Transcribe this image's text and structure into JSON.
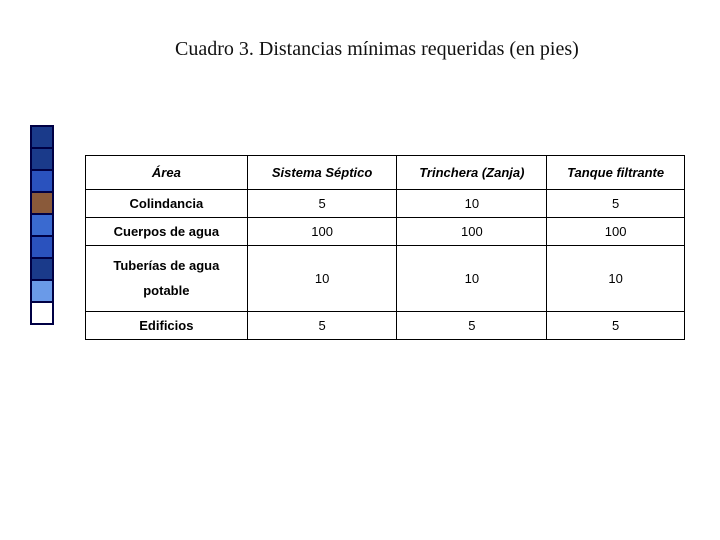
{
  "title": "Cuadro 3. Distancias mínimas requeridas (en pies)",
  "bullets": {
    "colors": [
      "#1a3a8a",
      "#1a3a8a",
      "#2a52be",
      "#8a5a3a",
      "#3a6ad0",
      "#2a52be",
      "#1a3a8a",
      "#6a9ae8",
      "#ffffff"
    ],
    "border_color": "#000044"
  },
  "table": {
    "headers": [
      "Área",
      "Sistema Séptico",
      "Trinchera (Zanja)",
      "Tanque filtrante"
    ],
    "rows": [
      {
        "label": "Colindancia",
        "cells": [
          "5",
          "10",
          "5"
        ]
      },
      {
        "label": "Cuerpos de agua",
        "cells": [
          "100",
          "100",
          "100"
        ]
      },
      {
        "label": "Tuberías de agua potable",
        "cells": [
          "10",
          "10",
          "10"
        ],
        "multiline": true
      },
      {
        "label": "Edificios",
        "cells": [
          "5",
          "5",
          "5"
        ]
      }
    ]
  },
  "layout": {
    "title_fontsize": 20,
    "cell_fontsize": 13,
    "background": "#ffffff",
    "table_border": "#000000"
  }
}
